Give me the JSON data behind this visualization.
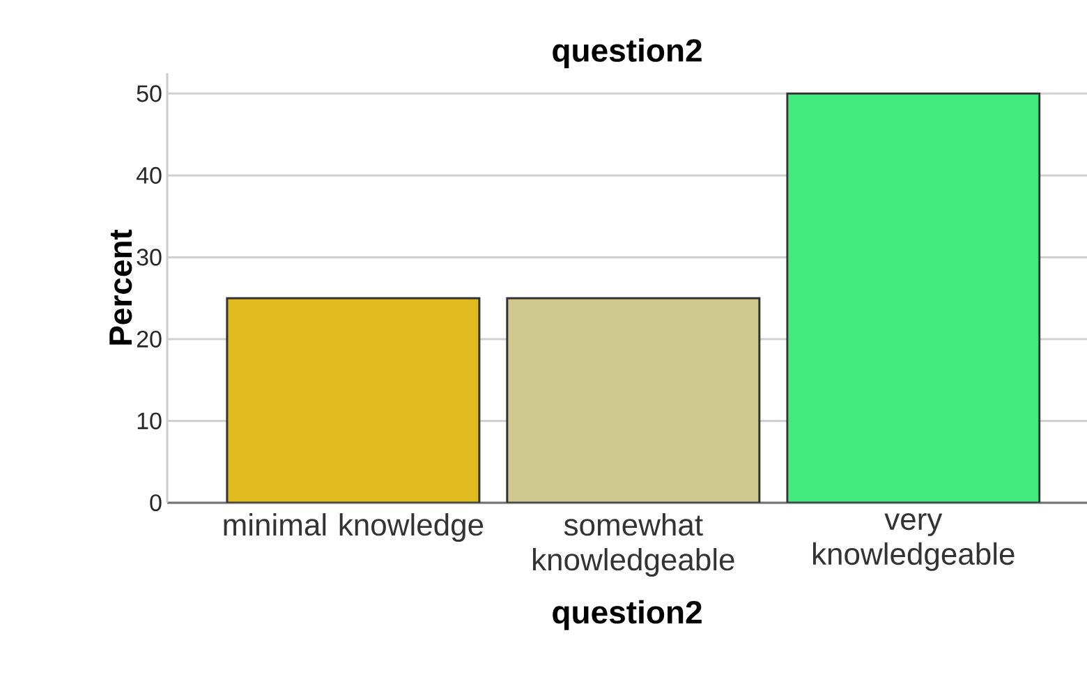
{
  "chart_data": {
    "type": "bar",
    "title": "question2",
    "xlabel": "question2",
    "ylabel": "Percent",
    "categories": [
      "minimal knowledge",
      "somewhat knowledgeable",
      "very knowledgeable"
    ],
    "values": [
      25,
      25,
      50
    ],
    "colors": [
      "#e0bb1e",
      "#d1ca90",
      "#42e97c"
    ],
    "ylim": [
      0,
      52.5
    ],
    "yticks": [
      0,
      10,
      20,
      30,
      40,
      50
    ],
    "grid": "y"
  }
}
